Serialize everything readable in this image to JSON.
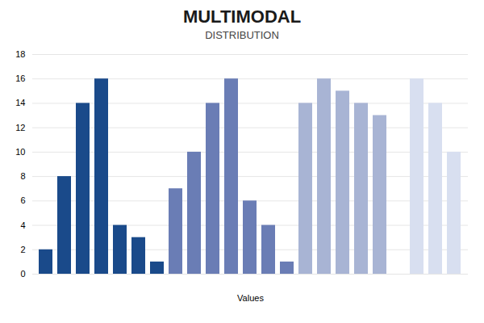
{
  "chart_data": {
    "type": "bar",
    "title": "MULTIMODAL",
    "subtitle": "DISTRIBUTION",
    "xlabel": "Values",
    "categories": [
      null,
      null,
      null,
      null,
      null,
      null,
      null,
      null,
      null,
      null,
      null,
      null,
      null,
      null,
      null,
      null,
      null,
      null,
      null,
      null,
      null,
      null,
      null
    ],
    "values": [
      2,
      8,
      14,
      16,
      4,
      3,
      1,
      7,
      10,
      14,
      16,
      6,
      4,
      1,
      14,
      16,
      15,
      14,
      13,
      0,
      16,
      14,
      10
    ],
    "colors": [
      "#1a4a8a",
      "#1a4a8a",
      "#1a4a8a",
      "#1a4a8a",
      "#1a4a8a",
      "#1a4a8a",
      "#1a4a8a",
      "#6a7db5",
      "#6a7db5",
      "#6a7db5",
      "#6a7db5",
      "#6a7db5",
      "#6a7db5",
      "#6a7db5",
      "#a8b4d4",
      "#a8b4d4",
      "#a8b4d4",
      "#a8b4d4",
      "#a8b4d4",
      "#a8b4d4",
      "#d8dff0",
      "#d8dff0",
      "#d8dff0"
    ],
    "ylim": [
      0,
      18
    ],
    "yticks": [
      0,
      2,
      4,
      6,
      8,
      10,
      12,
      14,
      16,
      18
    ],
    "grid": true,
    "tick_labels": "y"
  }
}
